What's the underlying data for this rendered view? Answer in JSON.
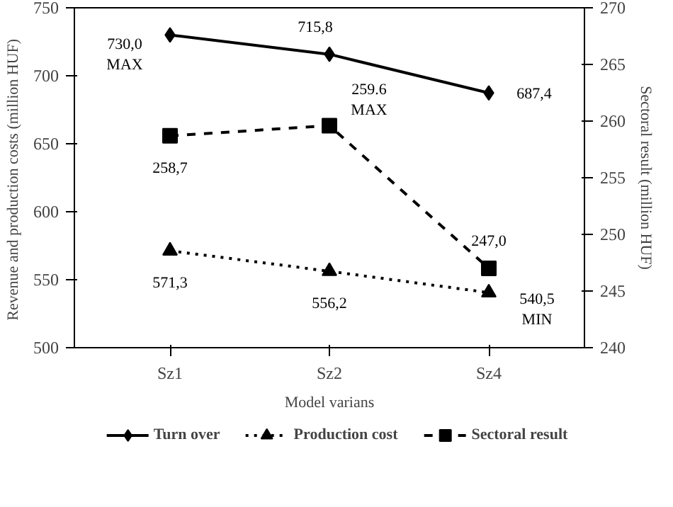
{
  "chart_data": {
    "type": "line",
    "xlabel": "Model varians",
    "ylabel": "Revenue and production costs (million  HUF)",
    "y2label": "Sectoral result (million HUF)",
    "categories": [
      "Sz1",
      "Sz2",
      "Sz4"
    ],
    "series": [
      {
        "name": "Turn over",
        "color": "#000000",
        "values": [
          730.0,
          715.8,
          687.4
        ],
        "marker": "diamond",
        "line_style": "solid",
        "value_labels": [
          "730,0\nMAX",
          "715,8",
          "687,4"
        ]
      },
      {
        "name": "Production cost",
        "color": "#000000",
        "values": [
          571.3,
          556.2,
          540.5
        ],
        "marker": "triangle",
        "line_style": "dotted",
        "value_labels": [
          "571,3",
          "556,2",
          "540,5\nMIN"
        ]
      },
      {
        "name": "Sectoral result",
        "color": "#000000",
        "values": [
          258.7,
          259.6,
          247.0
        ],
        "marker": "square",
        "line_style": "dashed",
        "axis": "y2",
        "value_labels": [
          "258,7",
          "259.6\nMAX",
          "247,0"
        ]
      }
    ],
    "ylim": [
      500,
      750
    ],
    "yticks": [
      500,
      550,
      600,
      650,
      700,
      750
    ],
    "y2lim": [
      240,
      270
    ],
    "y2ticks": [
      240,
      245,
      250,
      255,
      260,
      265,
      270
    ],
    "grid": false,
    "legend": "bottom"
  }
}
